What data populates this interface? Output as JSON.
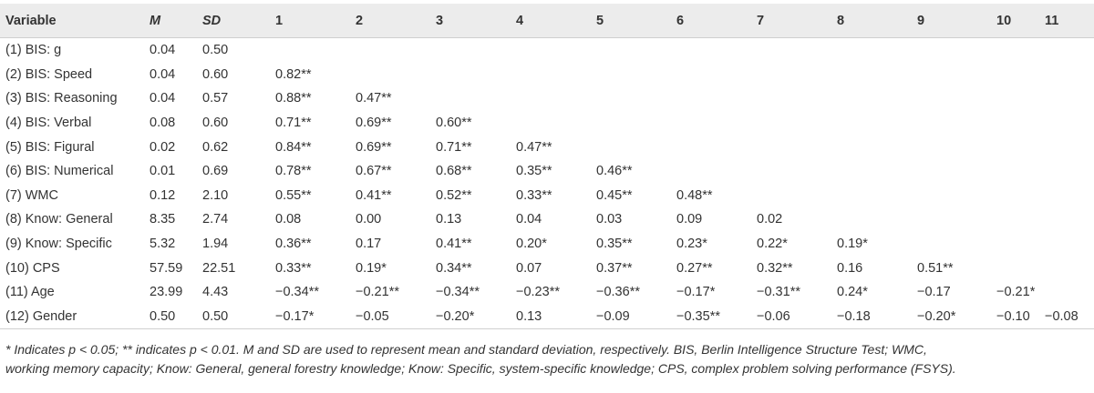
{
  "header": [
    "Variable",
    "M",
    "SD",
    "1",
    "2",
    "3",
    "4",
    "5",
    "6",
    "7",
    "8",
    "9",
    "10",
    "11"
  ],
  "rows": [
    [
      "(1) BIS: g",
      "0.04",
      "0.50",
      "",
      "",
      "",
      "",
      "",
      "",
      "",
      "",
      "",
      "",
      ""
    ],
    [
      "(2) BIS: Speed",
      "0.04",
      "0.60",
      "0.82**",
      "",
      "",
      "",
      "",
      "",
      "",
      "",
      "",
      "",
      ""
    ],
    [
      "(3) BIS: Reasoning",
      "0.04",
      "0.57",
      "0.88**",
      "0.47**",
      "",
      "",
      "",
      "",
      "",
      "",
      "",
      "",
      ""
    ],
    [
      "(4) BIS: Verbal",
      "0.08",
      "0.60",
      "0.71**",
      "0.69**",
      "0.60**",
      "",
      "",
      "",
      "",
      "",
      "",
      "",
      ""
    ],
    [
      "(5) BIS: Figural",
      "0.02",
      "0.62",
      "0.84**",
      "0.69**",
      "0.71**",
      "0.47**",
      "",
      "",
      "",
      "",
      "",
      "",
      ""
    ],
    [
      "(6) BIS: Numerical",
      "0.01",
      "0.69",
      "0.78**",
      "0.67**",
      "0.68**",
      "0.35**",
      "0.46**",
      "",
      "",
      "",
      "",
      "",
      ""
    ],
    [
      "(7) WMC",
      "0.12",
      "2.10",
      "0.55**",
      "0.41**",
      "0.52**",
      "0.33**",
      "0.45**",
      "0.48**",
      "",
      "",
      "",
      "",
      ""
    ],
    [
      "(8) Know: General",
      "8.35",
      "2.74",
      "0.08",
      "0.00",
      "0.13",
      "0.04",
      "0.03",
      "0.09",
      "0.02",
      "",
      "",
      "",
      ""
    ],
    [
      "(9) Know: Specific",
      "5.32",
      "1.94",
      "0.36**",
      "0.17",
      "0.41**",
      "0.20*",
      "0.35**",
      "0.23*",
      "0.22*",
      "0.19*",
      "",
      "",
      ""
    ],
    [
      "(10) CPS",
      "57.59",
      "22.51",
      "0.33**",
      "0.19*",
      "0.34**",
      "0.07",
      "0.37**",
      "0.27**",
      "0.32**",
      "0.16",
      "0.51**",
      "",
      ""
    ],
    [
      "(11) Age",
      "23.99",
      "4.43",
      "−0.34**",
      "−0.21**",
      "−0.34**",
      "−0.23**",
      "−0.36**",
      "−0.17*",
      "−0.31**",
      "0.24*",
      "−0.17",
      "−0.21*",
      ""
    ],
    [
      "(12) Gender",
      "0.50",
      "0.50",
      "−0.17*",
      "−0.05",
      "−0.20*",
      "0.13",
      "−0.09",
      "−0.35**",
      "−0.06",
      "−0.18",
      "−0.20*",
      "−0.10",
      "−0.08"
    ]
  ],
  "note": {
    "line1": "* Indicates p < 0.05; ** indicates p < 0.01. M and SD are used to represent mean and standard deviation, respectively. BIS, Berlin Intelligence Structure Test; WMC,",
    "line2": "working memory capacity; Know: General, general forestry knowledge; Know: Specific, system-specific knowledge; CPS, complex problem solving performance (FSYS)."
  }
}
